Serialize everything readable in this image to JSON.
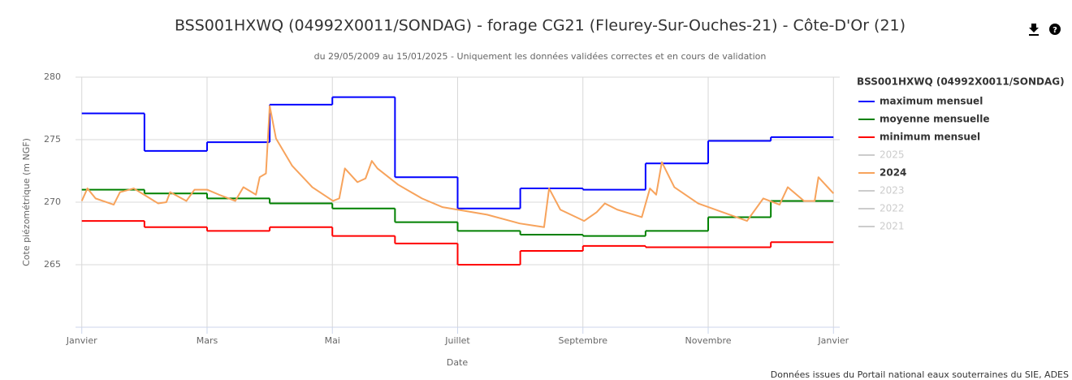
{
  "chart_data": {
    "type": "line",
    "title": "BSS001HXWQ (04992X0011/SONDAG) - forage CG21 (Fleurey-Sur-Ouches-21) - Côte-D'Or (21)",
    "subtitle": "du 29/05/2009 au 15/01/2025 - Uniquement les données validées correctes et en cours de validation",
    "x_label": "Date",
    "y_label": "Cote piézométrique (m NGF)",
    "credits": "Données issues du Portail national eaux souterraines du SIE, ADES",
    "legend_title": "BSS001HXWQ (04992X0011/SONDAG)",
    "legend": "right",
    "grid": true,
    "xlim": [
      -0.1,
      12.1
    ],
    "xticks": [
      {
        "value": 0,
        "label": "Janvier"
      },
      {
        "value": 2,
        "label": "Mars"
      },
      {
        "value": 4,
        "label": "Mai"
      },
      {
        "value": 6,
        "label": "Juillet"
      },
      {
        "value": 8,
        "label": "Septembre"
      },
      {
        "value": 10,
        "label": "Novembre"
      },
      {
        "value": 12,
        "label": "Janvier"
      }
    ],
    "ylim": [
      260,
      280
    ],
    "yticks": [
      265,
      270,
      275,
      280
    ],
    "series": [
      {
        "name": "maximum mensuel",
        "color": "#0000ff",
        "step": true,
        "bins": [
          0,
          1,
          2,
          3,
          4,
          5,
          6,
          7,
          8,
          9,
          10,
          11,
          12
        ],
        "values": [
          277.1,
          274.1,
          274.8,
          277.8,
          278.4,
          272.0,
          269.5,
          271.1,
          271.0,
          273.1,
          274.9,
          275.2
        ]
      },
      {
        "name": "moyenne mensuelle",
        "color": "#008000",
        "step": true,
        "bins": [
          0,
          1,
          2,
          3,
          4,
          5,
          6,
          7,
          8,
          9,
          10,
          11,
          12
        ],
        "values": [
          271.0,
          270.7,
          270.3,
          269.9,
          269.5,
          268.4,
          267.7,
          267.4,
          267.3,
          267.7,
          268.8,
          270.1
        ]
      },
      {
        "name": "minimum mensuel",
        "color": "#ff0000",
        "step": true,
        "bins": [
          0,
          1,
          2,
          3,
          4,
          5,
          6,
          7,
          8,
          9,
          10,
          11,
          12
        ],
        "values": [
          268.5,
          268.0,
          267.7,
          268.0,
          267.3,
          266.7,
          265.0,
          266.1,
          266.5,
          266.4,
          266.4,
          266.8
        ]
      },
      {
        "name": "2025",
        "color": "#cccccc",
        "visible": false
      },
      {
        "name": "2024",
        "color": "#f7a35c",
        "x": [
          0.0,
          0.09,
          0.22,
          0.51,
          0.61,
          0.83,
          1.09,
          1.22,
          1.35,
          1.41,
          1.67,
          1.8,
          2.0,
          2.19,
          2.45,
          2.58,
          2.78,
          2.84,
          2.94,
          3.0,
          3.1,
          3.36,
          3.68,
          4.01,
          4.11,
          4.2,
          4.4,
          4.53,
          4.63,
          4.72,
          5.05,
          5.43,
          5.76,
          6.0,
          6.47,
          6.99,
          7.25,
          7.38,
          7.46,
          7.64,
          8.02,
          8.22,
          8.35,
          8.55,
          8.94,
          9.07,
          9.17,
          9.26,
          9.46,
          9.84,
          10.23,
          10.62,
          10.88,
          11.14,
          11.27,
          11.53,
          11.7,
          11.76,
          12.0
        ],
        "values": [
          270.1,
          271.1,
          270.3,
          269.8,
          270.8,
          271.1,
          270.3,
          269.9,
          270.0,
          270.8,
          270.1,
          271.0,
          271.0,
          270.6,
          270.1,
          271.2,
          270.6,
          272.0,
          272.3,
          277.7,
          275.1,
          272.9,
          271.2,
          270.1,
          270.3,
          272.7,
          271.6,
          271.9,
          273.3,
          272.7,
          271.4,
          270.3,
          269.6,
          269.4,
          269.0,
          268.3,
          268.1,
          268.0,
          271.1,
          269.4,
          268.5,
          269.2,
          269.9,
          269.4,
          268.8,
          271.1,
          270.6,
          273.2,
          271.2,
          269.9,
          269.2,
          268.5,
          270.3,
          269.8,
          271.2,
          270.1,
          270.1,
          272.0,
          270.7
        ]
      },
      {
        "name": "2023",
        "color": "#cccccc",
        "visible": false
      },
      {
        "name": "2022",
        "color": "#cccccc",
        "visible": false
      },
      {
        "name": "2021",
        "color": "#cccccc",
        "visible": false
      }
    ]
  }
}
